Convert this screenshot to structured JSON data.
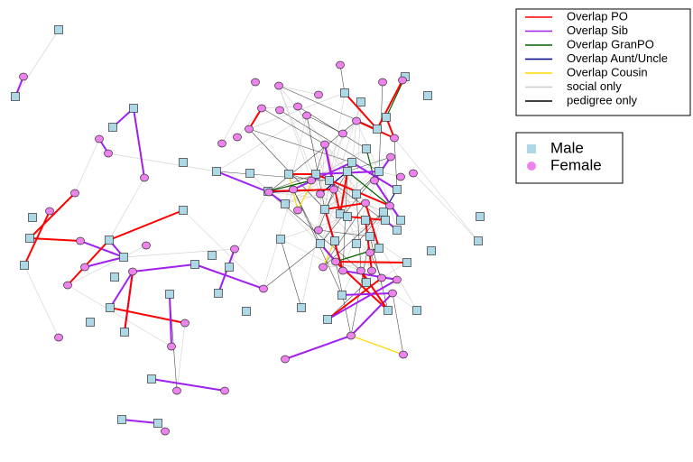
{
  "edge_legend": {
    "entries": [
      {
        "label": "Overlap PO",
        "color": "#ff0000"
      },
      {
        "label": "Overlap Sib",
        "color": "#a020f0"
      },
      {
        "label": "Overlap GranPO",
        "color": "#006400"
      },
      {
        "label": "Overlap Aunt/Uncle",
        "color": "#00008b"
      },
      {
        "label": "Overlap Cousin",
        "color": "#ffd700"
      },
      {
        "label": "social only",
        "color": "#cccccc"
      },
      {
        "label": "pedigree only",
        "color": "#000000"
      }
    ]
  },
  "node_legend": {
    "entries": [
      {
        "label": "Male",
        "color": "#add8e6"
      },
      {
        "label": "Female",
        "color": "#ee82ee"
      }
    ]
  }
}
